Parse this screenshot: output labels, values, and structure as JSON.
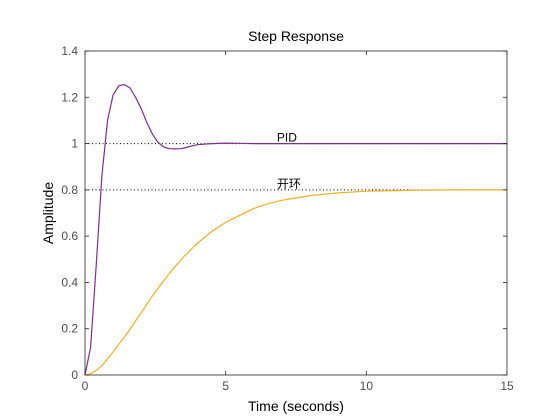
{
  "chart_data": {
    "type": "line",
    "title": "Step Response",
    "xlabel": "Time (seconds)",
    "ylabel": "Amplitude",
    "xlim": [
      0,
      15
    ],
    "ylim": [
      0,
      1.4
    ],
    "xticks": [
      0,
      5,
      10,
      15
    ],
    "yticks": [
      0,
      0.2,
      0.4,
      0.6,
      0.8,
      1,
      1.2,
      1.4
    ],
    "grid": false,
    "reference_lines": [
      {
        "y": 1.0,
        "style": "dotted",
        "color": "#000000"
      },
      {
        "y": 0.8,
        "style": "dotted",
        "color": "#000000"
      }
    ],
    "series": [
      {
        "label": "PID",
        "label_at": [
          7,
          1.0
        ],
        "color": "#7e2f8e",
        "x": [
          0,
          0.2,
          0.4,
          0.6,
          0.8,
          1.0,
          1.2,
          1.4,
          1.6,
          1.8,
          2.0,
          2.2,
          2.4,
          2.6,
          2.8,
          3.0,
          3.2,
          3.4,
          3.6,
          3.8,
          4.0,
          4.5,
          5.0,
          5.5,
          6.0,
          7.0,
          8.0,
          9.0,
          10.0,
          11.0,
          12.0,
          13.0,
          14.0,
          15.0
        ],
        "values": [
          0,
          0.12,
          0.48,
          0.86,
          1.1,
          1.21,
          1.25,
          1.255,
          1.24,
          1.2,
          1.15,
          1.09,
          1.04,
          1.005,
          0.985,
          0.978,
          0.977,
          0.978,
          0.983,
          0.99,
          0.995,
          1.0,
          1.002,
          1.001,
          1.0,
          1.0,
          1.0,
          1.0,
          1.0,
          1.0,
          1.0,
          1.0,
          1.0,
          1.0
        ]
      },
      {
        "label": "开环",
        "label_at": [
          7,
          0.8
        ],
        "color": "#edb120",
        "x": [
          0,
          0.2,
          0.4,
          0.6,
          0.8,
          1.0,
          1.5,
          2.0,
          2.5,
          3.0,
          3.5,
          4.0,
          4.5,
          5.0,
          5.5,
          6.0,
          6.5,
          7.0,
          7.5,
          8.0,
          9.0,
          10.0,
          11.0,
          12.0,
          13.0,
          14.0,
          15.0
        ],
        "values": [
          0,
          0.005,
          0.02,
          0.04,
          0.07,
          0.1,
          0.18,
          0.27,
          0.36,
          0.44,
          0.51,
          0.57,
          0.62,
          0.66,
          0.69,
          0.72,
          0.74,
          0.755,
          0.765,
          0.775,
          0.787,
          0.794,
          0.797,
          0.799,
          0.8,
          0.8,
          0.8
        ]
      }
    ]
  }
}
